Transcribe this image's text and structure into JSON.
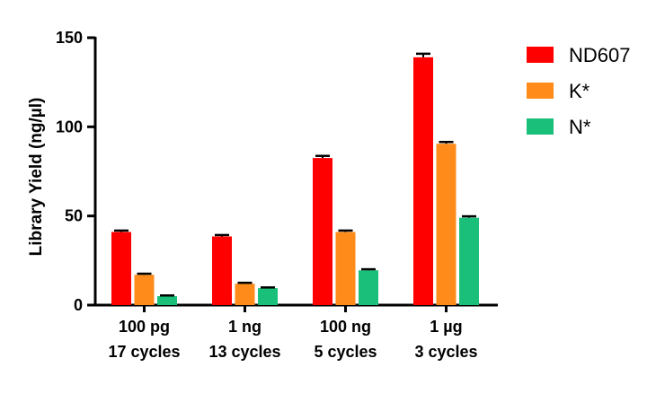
{
  "chart_data": {
    "type": "bar",
    "title": "",
    "xlabel": "",
    "ylabel": "Library Yield (ng/µl)",
    "ylim": [
      0,
      150
    ],
    "yticks": [
      0,
      50,
      100,
      150
    ],
    "categories": [
      {
        "line1": "100 pg",
        "line2": "17 cycles"
      },
      {
        "line1": "1 ng",
        "line2": "13 cycles"
      },
      {
        "line1": "100 ng",
        "line2": "5 cycles"
      },
      {
        "line1": "1 µg",
        "line2": "3 cycles"
      }
    ],
    "series": [
      {
        "name": "ND607",
        "color": "#ff0000",
        "values": [
          41,
          38.5,
          82.5,
          139
        ],
        "errors": [
          0.8,
          0.8,
          1.2,
          2.0
        ]
      },
      {
        "name": "K*",
        "color": "#ff8c1a",
        "values": [
          17,
          12,
          41,
          90.5
        ],
        "errors": [
          0.6,
          0.5,
          0.8,
          1.0
        ]
      },
      {
        "name": "N*",
        "color": "#1abf7a",
        "values": [
          5,
          9.5,
          19.5,
          49
        ],
        "errors": [
          0.4,
          0.4,
          0.6,
          0.8
        ]
      }
    ],
    "legend_position": "top-right"
  }
}
